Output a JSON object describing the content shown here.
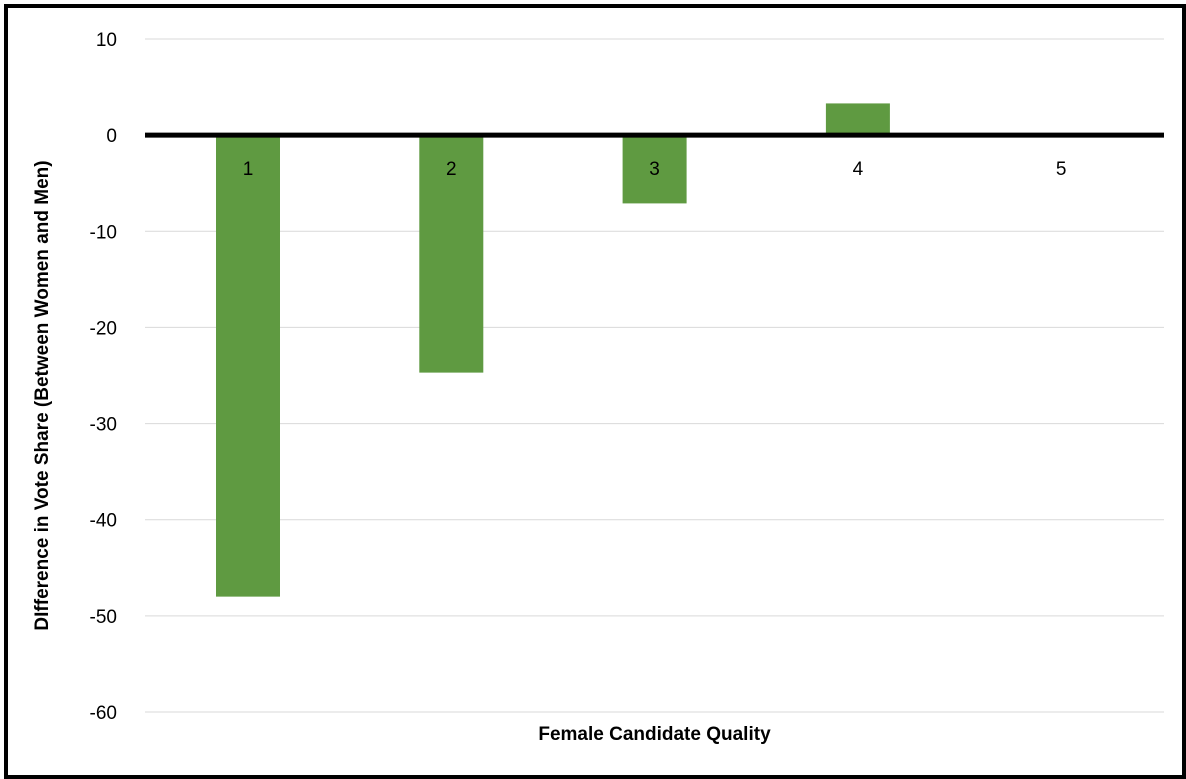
{
  "chart_data": {
    "type": "bar",
    "categories": [
      "1",
      "2",
      "3",
      "4",
      "5"
    ],
    "values": [
      -48,
      -24.7,
      -7.1,
      3.3,
      0
    ],
    "xlabel": "Female Candidate Quality",
    "ylabel": "DIfference in Vote Share (Between Women and Men)",
    "ylim": [
      -60,
      10
    ],
    "yticks": [
      10,
      0,
      -10,
      -20,
      -30,
      -40,
      -50,
      -60
    ],
    "ytick_labels": [
      "10",
      "0",
      "-10",
      "-20",
      "-30",
      "-40",
      "-50",
      "-60"
    ],
    "grid": true,
    "legend": "none",
    "bar_color": "#5f9a41",
    "zero_line_color": "#000000"
  }
}
